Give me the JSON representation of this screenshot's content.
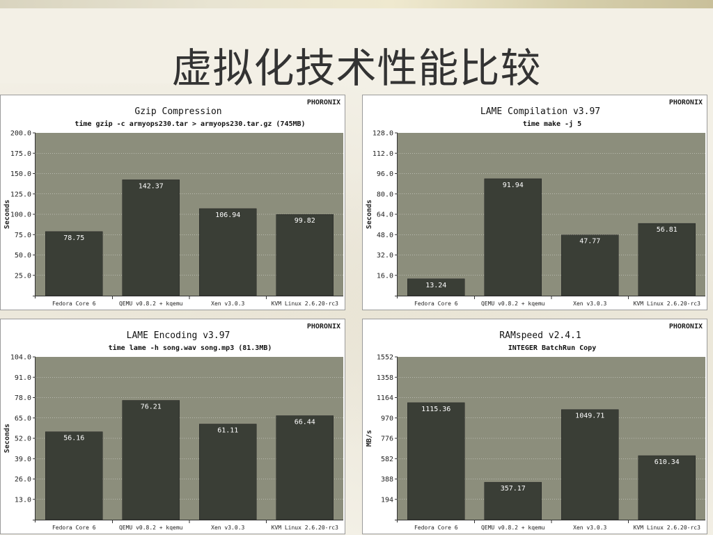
{
  "slide": {
    "title": "虚拟化技术性能比较"
  },
  "brand": "PHORONIX",
  "colors": {
    "plot_bg": "#8c8e7c",
    "bar": "#3a3e36",
    "bar_label": "#ffffff",
    "grid": "#ffffff"
  },
  "chart_data": [
    {
      "type": "bar",
      "title": "Gzip Compression",
      "subtitle": "time gzip -c armyops230.tar > armyops230.tar.gz (745MB)",
      "xlabel": "",
      "ylabel": "Seconds",
      "ylim": [
        0,
        200
      ],
      "yticks": [
        25,
        50,
        75,
        100,
        125,
        150,
        175,
        200
      ],
      "ytick_labels": [
        "25.0",
        "50.0",
        "75.0",
        "100.0",
        "125.0",
        "150.0",
        "175.0",
        "200.0"
      ],
      "categories": [
        "Fedora Core 6",
        "QEMU v0.8.2 + kqemu",
        "Xen v3.0.3",
        "KVM Linux 2.6.20-rc3"
      ],
      "values": [
        78.75,
        142.37,
        106.94,
        99.82
      ],
      "value_labels": [
        "78.75",
        "142.37",
        "106.94",
        "99.82"
      ]
    },
    {
      "type": "bar",
      "title": "LAME Compilation v3.97",
      "subtitle": "time make -j 5",
      "xlabel": "",
      "ylabel": "Seconds",
      "ylim": [
        0,
        128
      ],
      "yticks": [
        16,
        32,
        48,
        64,
        80,
        96,
        112,
        128
      ],
      "ytick_labels": [
        "16.0",
        "32.0",
        "48.0",
        "64.0",
        "80.0",
        "96.0",
        "112.0",
        "128.0"
      ],
      "categories": [
        "Fedora Core 6",
        "QEMU v0.8.2 + kqemu",
        "Xen v3.0.3",
        "KVM Linux 2.6.20-rc3"
      ],
      "values": [
        13.24,
        91.94,
        47.77,
        56.81
      ],
      "value_labels": [
        "13.24",
        "91.94",
        "47.77",
        "56.81"
      ]
    },
    {
      "type": "bar",
      "title": "LAME Encoding v3.97",
      "subtitle": "time lame -h song.wav song.mp3 (81.3MB)",
      "xlabel": "",
      "ylabel": "Seconds",
      "ylim": [
        0,
        104
      ],
      "yticks": [
        13,
        26,
        39,
        52,
        65,
        78,
        91,
        104
      ],
      "ytick_labels": [
        "13.0",
        "26.0",
        "39.0",
        "52.0",
        "65.0",
        "78.0",
        "91.0",
        "104.0"
      ],
      "categories": [
        "Fedora Core 6",
        "QEMU v0.8.2 + kqemu",
        "Xen v3.0.3",
        "KVM Linux 2.6.20-rc3"
      ],
      "values": [
        56.16,
        76.21,
        61.11,
        66.44
      ],
      "value_labels": [
        "56.16",
        "76.21",
        "61.11",
        "66.44"
      ]
    },
    {
      "type": "bar",
      "title": "RAMspeed v2.4.1",
      "subtitle": "INTEGER BatchRun Copy",
      "xlabel": "",
      "ylabel": "MB/s",
      "ylim": [
        0,
        1552
      ],
      "yticks": [
        194,
        388,
        582,
        776,
        970,
        1164,
        1358,
        1552
      ],
      "ytick_labels": [
        "194",
        "388",
        "582",
        "776",
        "970",
        "1164",
        "1358",
        "1552"
      ],
      "categories": [
        "Fedora Core 6",
        "QEMU v0.8.2 + kqemu",
        "Xen v3.0.3",
        "KVM Linux 2.6.20-rc3"
      ],
      "values": [
        1115.36,
        357.17,
        1049.71,
        610.34
      ],
      "value_labels": [
        "1115.36",
        "357.17",
        "1049.71",
        "610.34"
      ]
    }
  ]
}
